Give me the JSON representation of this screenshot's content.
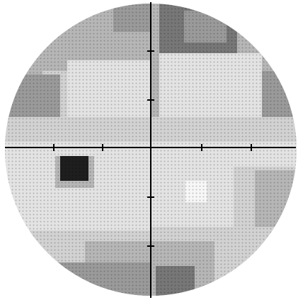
{
  "greyscale_map": {
    "shades": {
      "white": "#f7f7f7",
      "light": "#e3e3e3",
      "light_mid": "#d2d2d2",
      "mid": "#b6b6b6",
      "mid_dark": "#9a9a9a",
      "dark": "#777777",
      "darkest": "#1e1e1e"
    },
    "axis_color": "#000000",
    "background": "#ffffff"
  }
}
